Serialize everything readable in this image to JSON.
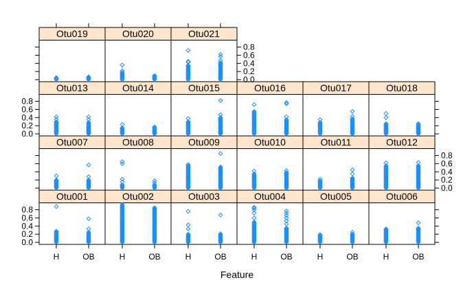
{
  "chart_data": {
    "type": "scatter",
    "layout": "lattice strip plot, 6 columns x 4 rows, panels filled from bottom-left",
    "xlabel": "Feature",
    "ylabel": "",
    "x_categories": [
      "H",
      "OB"
    ],
    "ylim": [
      -0.05,
      0.97
    ],
    "y_ticks": [
      0.0,
      0.2,
      0.4,
      0.6,
      0.8
    ],
    "y_tick_labels": [
      "0.0",
      "0.2",
      "0.4",
      "0.6",
      "0.8"
    ],
    "point_symbol": "diamond",
    "colors": {
      "points": "#1f8fff",
      "strip_fill": "#ffe5cc",
      "frame": "#000000"
    },
    "panels": [
      {
        "name": "Otu001",
        "H": {
          "min": 0.0,
          "max": 0.27,
          "outliers": [
            0.88
          ]
        },
        "OB": {
          "min": 0.0,
          "max": 0.25,
          "outliers": [
            0.33,
            0.58
          ]
        }
      },
      {
        "name": "Otu002",
        "H": {
          "min": 0.0,
          "max": 0.93,
          "outliers": []
        },
        "OB": {
          "min": 0.0,
          "max": 0.85,
          "outliers": []
        }
      },
      {
        "name": "Otu003",
        "H": {
          "min": 0.0,
          "max": 0.2,
          "outliers": [
            0.33,
            0.43,
            0.76
          ]
        },
        "OB": {
          "min": 0.0,
          "max": 0.21,
          "outliers": [
            0.67
          ]
        }
      },
      {
        "name": "Otu004",
        "H": {
          "min": 0.0,
          "max": 0.5,
          "outliers": [
            0.6,
            0.72,
            0.8,
            0.84,
            0.86
          ]
        },
        "OB": {
          "min": 0.0,
          "max": 0.35,
          "outliers": [
            0.45,
            0.53,
            0.6,
            0.66,
            0.72,
            0.77
          ]
        }
      },
      {
        "name": "Otu005",
        "H": {
          "min": 0.0,
          "max": 0.19,
          "outliers": []
        },
        "OB": {
          "min": 0.0,
          "max": 0.2,
          "outliers": [
            0.25
          ]
        }
      },
      {
        "name": "Otu006",
        "H": {
          "min": 0.0,
          "max": 0.33,
          "outliers": []
        },
        "OB": {
          "min": 0.0,
          "max": 0.35,
          "outliers": [
            0.48
          ]
        }
      },
      {
        "name": "Otu007",
        "H": {
          "min": 0.0,
          "max": 0.2,
          "outliers": [
            0.3
          ]
        },
        "OB": {
          "min": 0.0,
          "max": 0.2,
          "outliers": [
            0.28,
            0.57
          ]
        }
      },
      {
        "name": "Otu008",
        "H": {
          "min": 0.0,
          "max": 0.08,
          "outliers": [
            0.15,
            0.22,
            0.6,
            0.65
          ]
        },
        "OB": {
          "min": 0.0,
          "max": 0.08,
          "outliers": [
            0.13,
            0.18
          ]
        }
      },
      {
        "name": "Otu009",
        "H": {
          "min": 0.0,
          "max": 0.55,
          "outliers": [
            0.58
          ]
        },
        "OB": {
          "min": 0.0,
          "max": 0.52,
          "outliers": [
            0.85
          ]
        }
      },
      {
        "name": "Otu010",
        "H": {
          "min": 0.0,
          "max": 0.35,
          "outliers": [
            0.42
          ]
        },
        "OB": {
          "min": 0.0,
          "max": 0.38,
          "outliers": [
            0.43
          ]
        }
      },
      {
        "name": "Otu011",
        "H": {
          "min": 0.0,
          "max": 0.18,
          "outliers": [
            0.22
          ]
        },
        "OB": {
          "min": 0.0,
          "max": 0.25,
          "outliers": [
            0.35,
            0.45
          ]
        }
      },
      {
        "name": "Otu012",
        "H": {
          "min": 0.0,
          "max": 0.55,
          "outliers": [
            0.62
          ]
        },
        "OB": {
          "min": 0.0,
          "max": 0.55,
          "outliers": [
            0.63
          ]
        }
      },
      {
        "name": "Otu013",
        "H": {
          "min": 0.0,
          "max": 0.3,
          "outliers": [
            0.36,
            0.42
          ]
        },
        "OB": {
          "min": 0.0,
          "max": 0.28,
          "outliers": [
            0.35,
            0.42
          ]
        }
      },
      {
        "name": "Otu014",
        "H": {
          "min": 0.0,
          "max": 0.15,
          "outliers": [
            0.23
          ]
        },
        "OB": {
          "min": 0.0,
          "max": 0.17,
          "outliers": []
        }
      },
      {
        "name": "Otu015",
        "H": {
          "min": 0.0,
          "max": 0.3,
          "outliers": [
            0.38
          ]
        },
        "OB": {
          "min": 0.0,
          "max": 0.4,
          "outliers": [
            0.47,
            0.82
          ]
        }
      },
      {
        "name": "Otu016",
        "H": {
          "min": 0.0,
          "max": 0.55,
          "outliers": [
            0.72
          ]
        },
        "OB": {
          "min": 0.0,
          "max": 0.35,
          "outliers": [
            0.42,
            0.74,
            0.77
          ]
        }
      },
      {
        "name": "Otu017",
        "H": {
          "min": 0.0,
          "max": 0.28,
          "outliers": [
            0.35
          ]
        },
        "OB": {
          "min": 0.0,
          "max": 0.37,
          "outliers": [
            0.43,
            0.55
          ]
        }
      },
      {
        "name": "Otu018",
        "H": {
          "min": 0.0,
          "max": 0.25,
          "outliers": [
            0.4,
            0.5
          ]
        },
        "OB": {
          "min": 0.0,
          "max": 0.25,
          "outliers": []
        }
      },
      {
        "name": "Otu019",
        "H": {
          "min": 0.0,
          "max": 0.05,
          "outliers": []
        },
        "OB": {
          "min": 0.0,
          "max": 0.07,
          "outliers": []
        }
      },
      {
        "name": "Otu020",
        "H": {
          "min": 0.0,
          "max": 0.18,
          "outliers": [
            0.22,
            0.36
          ]
        },
        "OB": {
          "min": 0.0,
          "max": 0.1,
          "outliers": []
        }
      },
      {
        "name": "Otu021",
        "H": {
          "min": 0.0,
          "max": 0.35,
          "outliers": [
            0.43,
            0.45,
            0.72
          ]
        },
        "OB": {
          "min": 0.0,
          "max": 0.42,
          "outliers": [
            0.47,
            0.57,
            0.62
          ]
        }
      }
    ]
  }
}
